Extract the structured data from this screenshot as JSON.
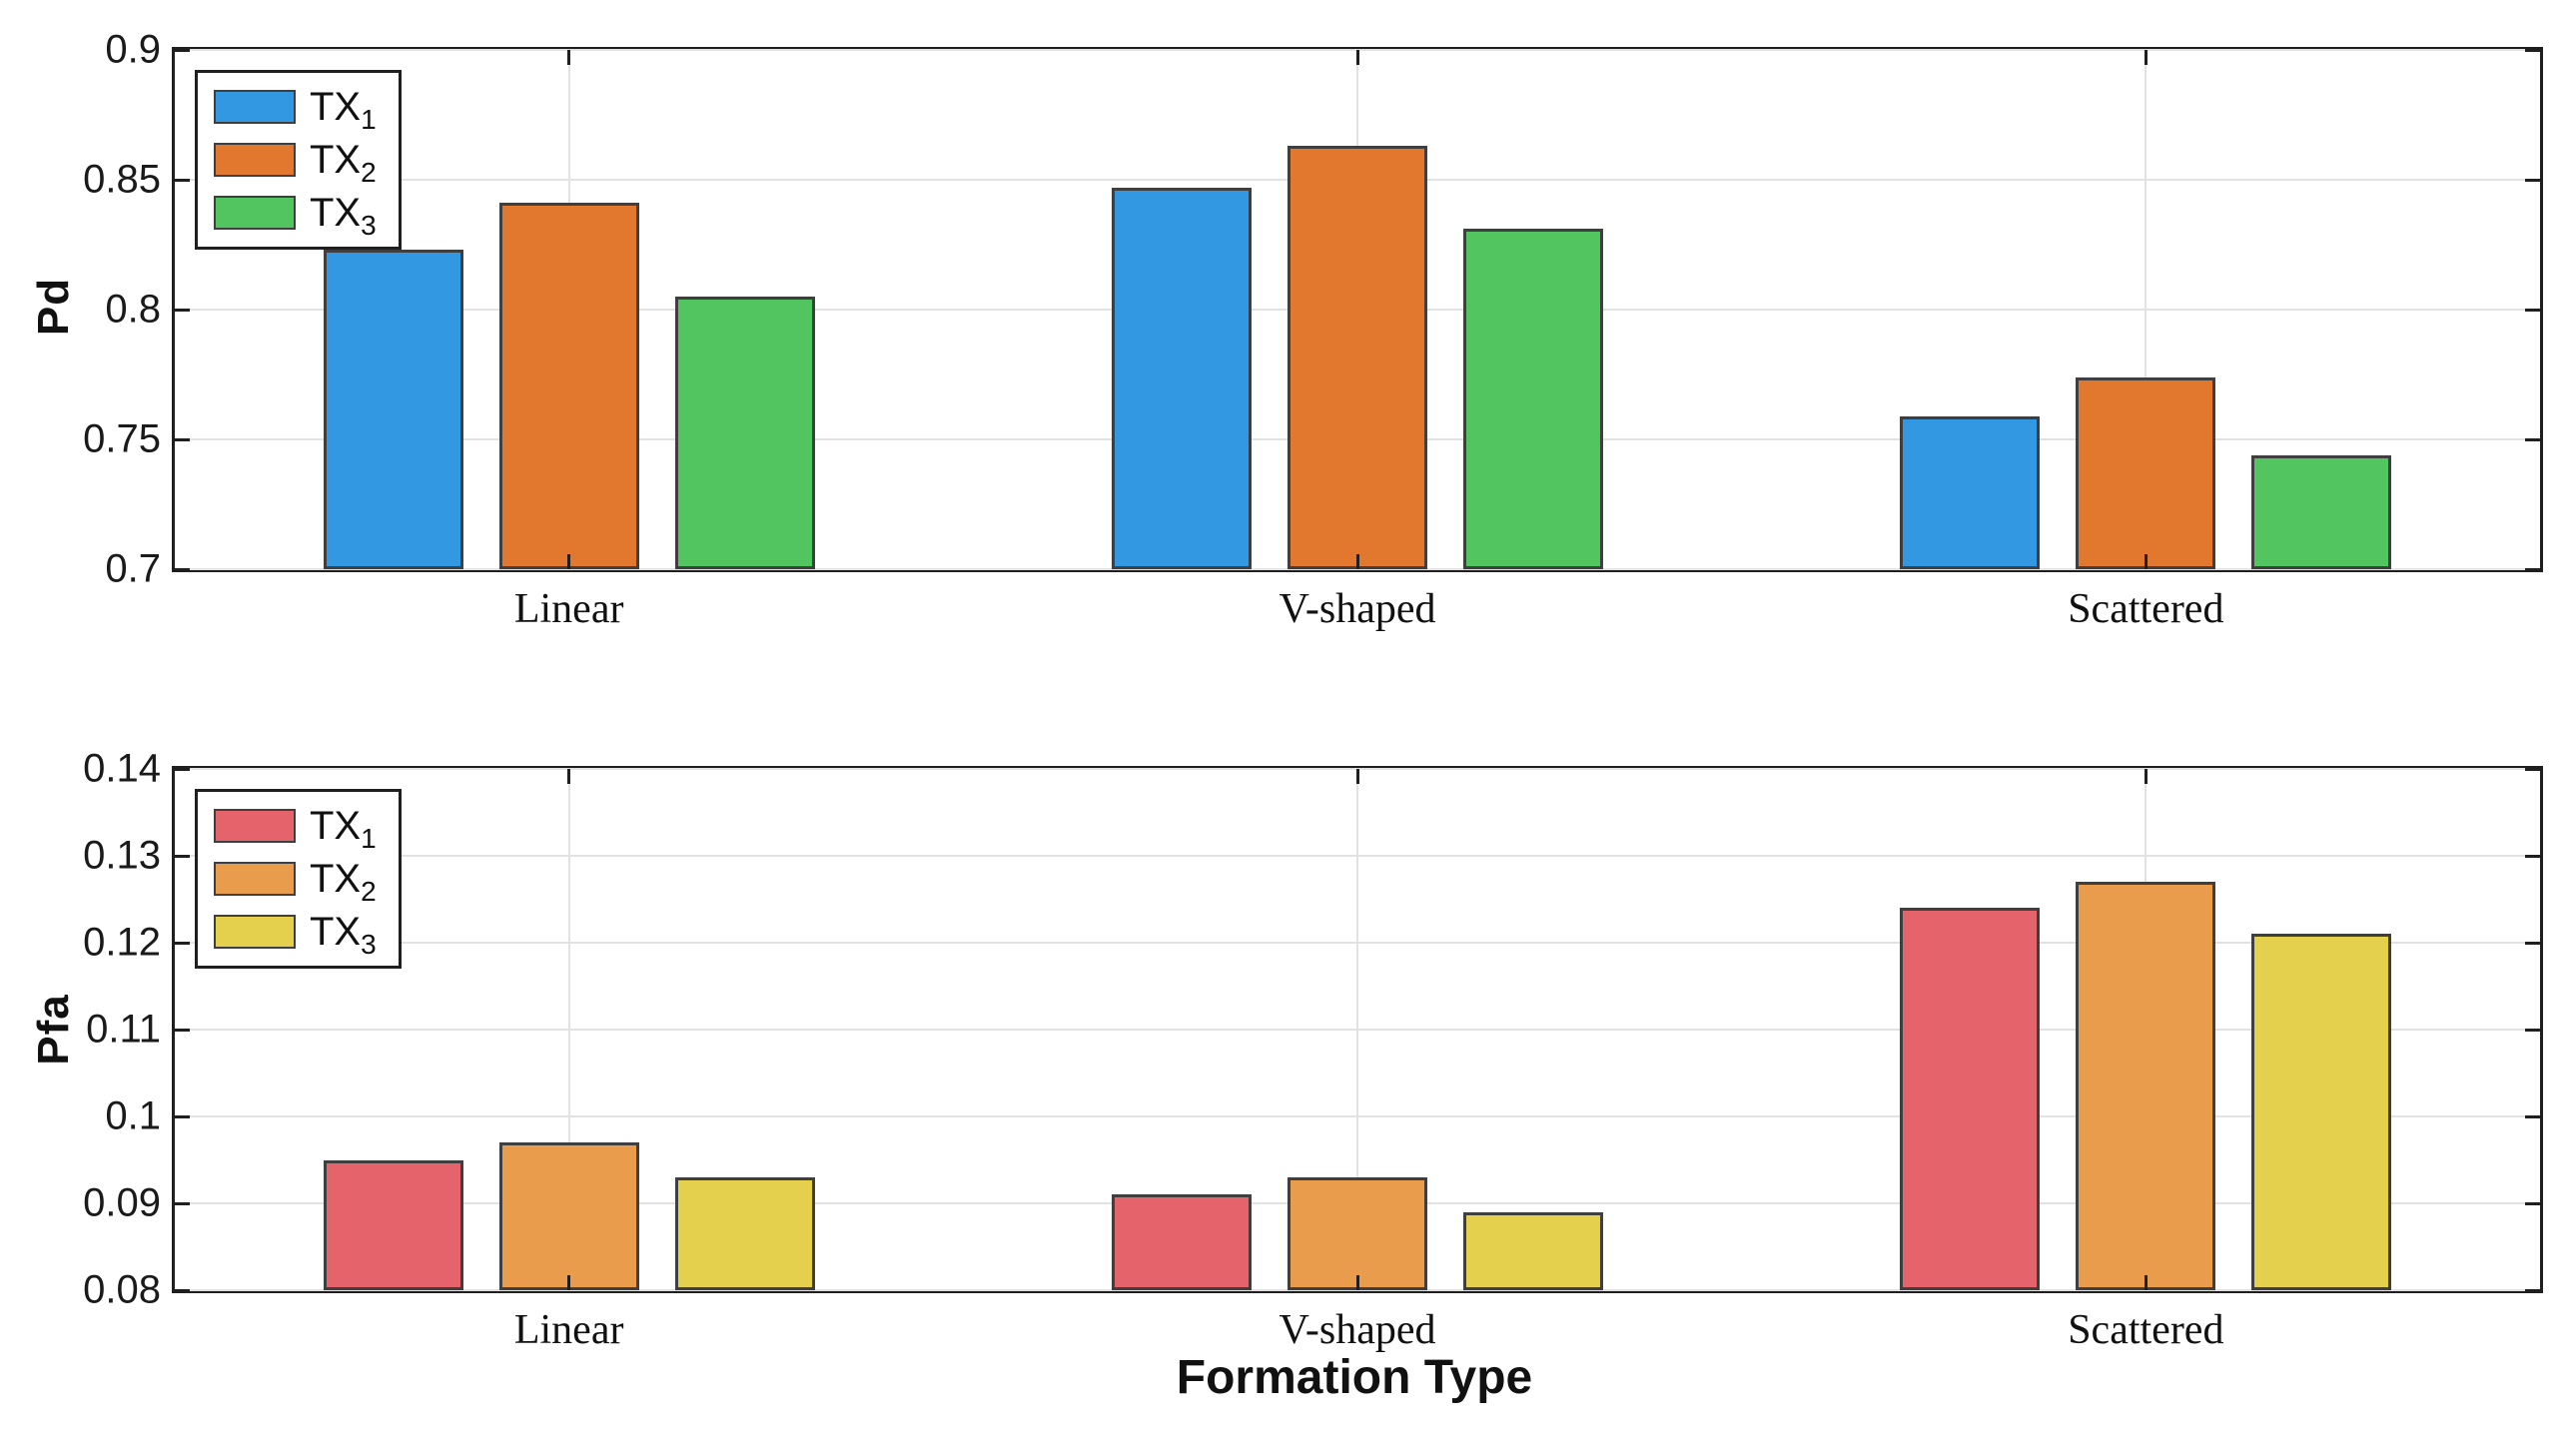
{
  "xlabel": "Formation Type",
  "chart_data": [
    {
      "type": "bar",
      "title": "",
      "ylabel": "Pd",
      "xlabel": "",
      "categories": [
        "Linear",
        "V-shaped",
        "Scattered"
      ],
      "series": [
        {
          "name": "TX1",
          "label_base": "TX",
          "label_sub": "1",
          "color": "#3398e2",
          "values": [
            0.823,
            0.847,
            0.759
          ]
        },
        {
          "name": "TX2",
          "label_base": "TX",
          "label_sub": "2",
          "color": "#e1782d",
          "values": [
            0.841,
            0.863,
            0.774
          ]
        },
        {
          "name": "TX3",
          "label_base": "TX",
          "label_sub": "3",
          "color": "#52c560",
          "values": [
            0.805,
            0.831,
            0.744
          ]
        }
      ],
      "ylim": [
        0.7,
        0.9
      ],
      "yticks": [
        {
          "value": 0.7,
          "label": "0.7"
        },
        {
          "value": 0.75,
          "label": "0.75"
        },
        {
          "value": 0.8,
          "label": "0.8"
        },
        {
          "value": 0.85,
          "label": "0.85"
        },
        {
          "value": 0.9,
          "label": "0.9"
        }
      ],
      "grid": true,
      "legend_position": "top-left"
    },
    {
      "type": "bar",
      "title": "",
      "ylabel": "Pfa",
      "xlabel": "Formation Type",
      "categories": [
        "Linear",
        "V-shaped",
        "Scattered"
      ],
      "series": [
        {
          "name": "TX1",
          "label_base": "TX",
          "label_sub": "1",
          "color": "#e5636b",
          "values": [
            0.095,
            0.091,
            0.124
          ]
        },
        {
          "name": "TX2",
          "label_base": "TX",
          "label_sub": "2",
          "color": "#e99c4c",
          "values": [
            0.097,
            0.093,
            0.127
          ]
        },
        {
          "name": "TX3",
          "label_base": "TX",
          "label_sub": "3",
          "color": "#e5d04e",
          "values": [
            0.093,
            0.089,
            0.121
          ]
        }
      ],
      "ylim": [
        0.08,
        0.14
      ],
      "yticks": [
        {
          "value": 0.08,
          "label": "0.08"
        },
        {
          "value": 0.09,
          "label": "0.09"
        },
        {
          "value": 0.1,
          "label": "0.1"
        },
        {
          "value": 0.11,
          "label": "0.11"
        },
        {
          "value": 0.12,
          "label": "0.12"
        },
        {
          "value": 0.13,
          "label": "0.13"
        },
        {
          "value": 0.14,
          "label": "0.14"
        }
      ],
      "grid": true,
      "legend_position": "top-left"
    }
  ]
}
